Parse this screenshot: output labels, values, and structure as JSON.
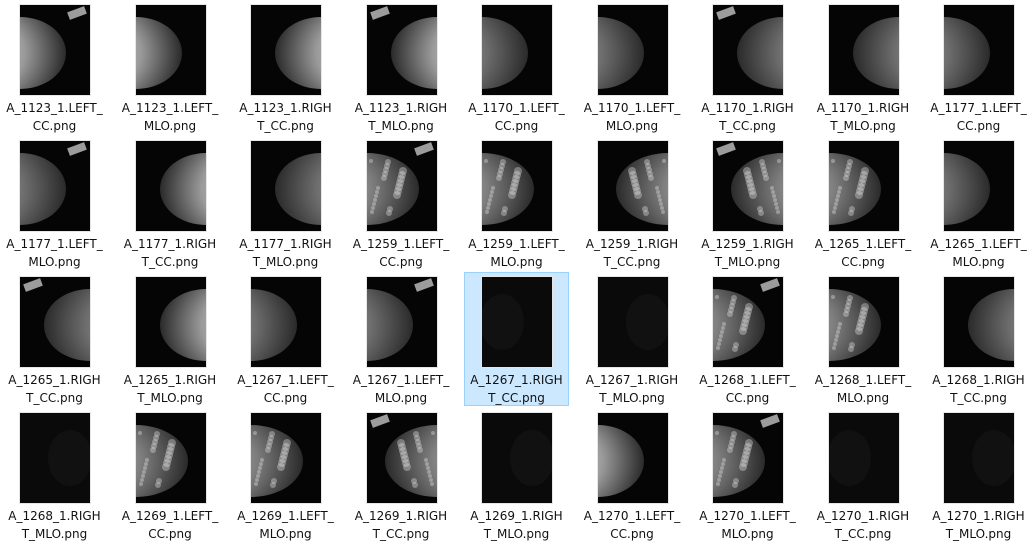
{
  "window": {
    "selected_item": "A_1267_1.RIGHT_CC.png"
  },
  "files": [
    {
      "name": "A_1123_1.LEFT_CC.png",
      "label": "A_1123_1.LEFT_\nCC.png",
      "thumb": "bright-left"
    },
    {
      "name": "A_1123_1.LEFT_MLO.png",
      "label": "A_1123_1.LEFT_\nMLO.png",
      "thumb": "bright-left"
    },
    {
      "name": "A_1123_1.RIGHT_CC.png",
      "label": "A_1123_1.RIGH\nT_CC.png",
      "thumb": "bright-right"
    },
    {
      "name": "A_1123_1.RIGHT_MLO.png",
      "label": "A_1123_1.RIGH\nT_MLO.png",
      "thumb": "bright-right"
    },
    {
      "name": "A_1170_1.LEFT_CC.png",
      "label": "A_1170_1.LEFT_\nCC.png",
      "thumb": "gray-left"
    },
    {
      "name": "A_1170_1.LEFT_MLO.png",
      "label": "A_1170_1.LEFT_\nMLO.png",
      "thumb": "gray-left"
    },
    {
      "name": "A_1170_1.RIGHT_CC.png",
      "label": "A_1170_1.RIGH\nT_CC.png",
      "thumb": "gray-right"
    },
    {
      "name": "A_1170_1.RIGHT_MLO.png",
      "label": "A_1170_1.RIGH\nT_MLO.png",
      "thumb": "gray-right"
    },
    {
      "name": "A_1177_1.LEFT_CC.png",
      "label": "A_1177_1.LEFT_\nCC.png",
      "thumb": "gray-left"
    },
    {
      "name": "A_1177_1.LEFT_MLO.png",
      "label": "A_1177_1.LEFT_\nMLO.png",
      "thumb": "gray-left"
    },
    {
      "name": "A_1177_1.RIGHT_CC.png",
      "label": "A_1177_1.RIGH\nT_CC.png",
      "thumb": "bright-right"
    },
    {
      "name": "A_1177_1.RIGHT_MLO.png",
      "label": "A_1177_1.RIGH\nT_MLO.png",
      "thumb": "gray-right"
    },
    {
      "name": "A_1259_1.LEFT_CC.png",
      "label": "A_1259_1.LEFT_\nCC.png",
      "thumb": "dense-left"
    },
    {
      "name": "A_1259_1.LEFT_MLO.png",
      "label": "A_1259_1.LEFT_\nMLO.png",
      "thumb": "dense-left"
    },
    {
      "name": "A_1259_1.RIGHT_CC.png",
      "label": "A_1259_1.RIGH\nT_CC.png",
      "thumb": "dense-right"
    },
    {
      "name": "A_1259_1.RIGHT_MLO.png",
      "label": "A_1259_1.RIGH\nT_MLO.png",
      "thumb": "dense-right"
    },
    {
      "name": "A_1265_1.LEFT_CC.png",
      "label": "A_1265_1.LEFT_\nCC.png",
      "thumb": "dense-left"
    },
    {
      "name": "A_1265_1.LEFT_MLO.png",
      "label": "A_1265_1.LEFT_\nMLO.png",
      "thumb": "gray-left"
    },
    {
      "name": "A_1265_1.RIGHT_CC.png",
      "label": "A_1265_1.RIGH\nT_CC.png",
      "thumb": "gray-right"
    },
    {
      "name": "A_1265_1.RIGHT_MLO.png",
      "label": "A_1265_1.RIGH\nT_MLO.png",
      "thumb": "bright-right"
    },
    {
      "name": "A_1267_1.LEFT_CC.png",
      "label": "A_1267_1.LEFT_\nCC.png",
      "thumb": "gray-left"
    },
    {
      "name": "A_1267_1.LEFT_MLO.png",
      "label": "A_1267_1.LEFT_\nMLO.png",
      "thumb": "gray-left"
    },
    {
      "name": "A_1267_1.RIGHT_CC.png",
      "label": "A_1267_1.RIGH\nT_CC.png",
      "thumb": "dark"
    },
    {
      "name": "A_1267_1.RIGHT_MLO.png",
      "label": "A_1267_1.RIGH\nT_MLO.png",
      "thumb": "dark"
    },
    {
      "name": "A_1268_1.LEFT_CC.png",
      "label": "A_1268_1.LEFT_\nCC.png",
      "thumb": "dense-left"
    },
    {
      "name": "A_1268_1.LEFT_MLO.png",
      "label": "A_1268_1.LEFT_\nMLO.png",
      "thumb": "dense-left"
    },
    {
      "name": "A_1268_1.RIGHT_CC.png",
      "label": "A_1268_1.RIGH\nT_CC.png",
      "thumb": "gray-right"
    },
    {
      "name": "A_1268_1.RIGHT_MLO.png",
      "label": "A_1268_1.RIGH\nT_MLO.png",
      "thumb": "dark"
    },
    {
      "name": "A_1269_1.LEFT_CC.png",
      "label": "A_1269_1.LEFT_\nCC.png",
      "thumb": "dense-left"
    },
    {
      "name": "A_1269_1.LEFT_MLO.png",
      "label": "A_1269_1.LEFT_\nMLO.png",
      "thumb": "dense-left"
    },
    {
      "name": "A_1269_1.RIGHT_CC.png",
      "label": "A_1269_1.RIGH\nT_CC.png",
      "thumb": "dense-right"
    },
    {
      "name": "A_1269_1.RIGHT_MLO.png",
      "label": "A_1269_1.RIGH\nT_MLO.png",
      "thumb": "dark"
    },
    {
      "name": "A_1270_1.LEFT_CC.png",
      "label": "A_1270_1.LEFT_\nCC.png",
      "thumb": "bright-left"
    },
    {
      "name": "A_1270_1.LEFT_MLO.png",
      "label": "A_1270_1.LEFT_\nMLO.png",
      "thumb": "dense-left"
    },
    {
      "name": "A_1270_1.RIGHT_CC.png",
      "label": "A_1270_1.RIGH\nT_CC.png",
      "thumb": "dark"
    },
    {
      "name": "A_1270_1.RIGHT_MLO.png",
      "label": "A_1270_1.RIGH\nT_MLO.png",
      "thumb": "dark"
    }
  ]
}
